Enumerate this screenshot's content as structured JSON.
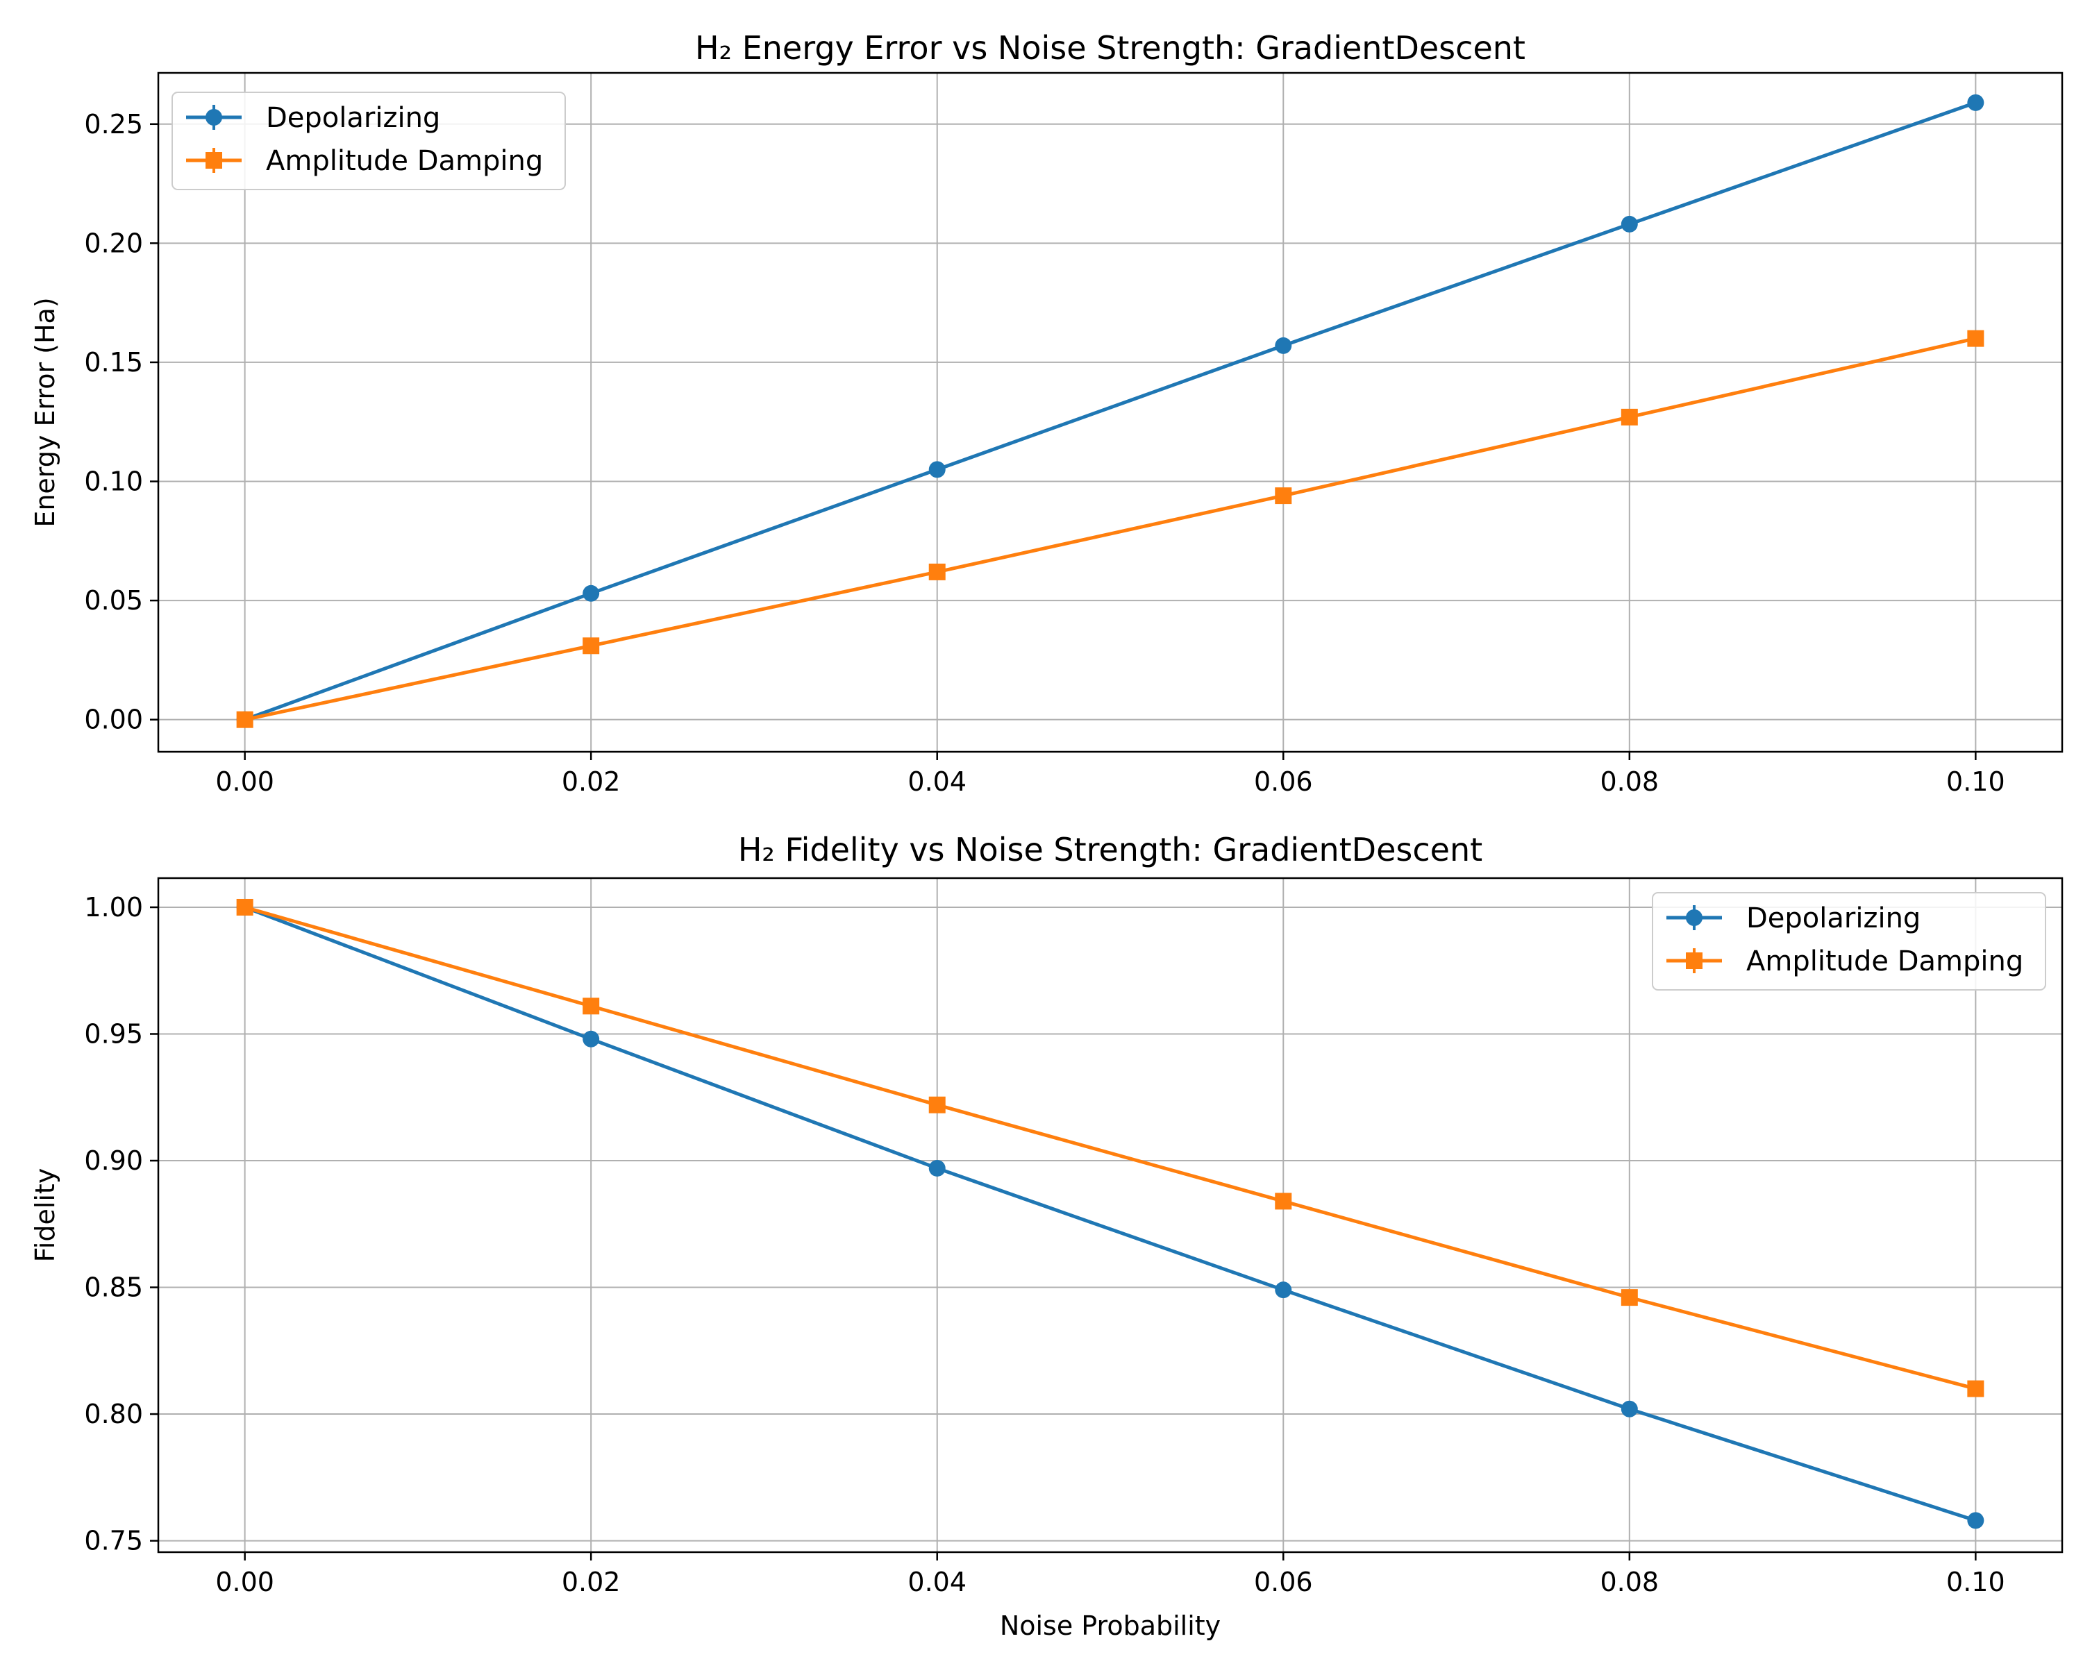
{
  "chart_data": [
    {
      "type": "line",
      "title": "H₂ Energy Error vs Noise Strength: GradientDescent",
      "xlabel": "",
      "ylabel": "Energy Error (Ha)",
      "x": [
        0.0,
        0.02,
        0.04,
        0.06,
        0.08,
        0.1
      ],
      "x_tick_labels": [
        "0.00",
        "0.02",
        "0.04",
        "0.06",
        "0.08",
        "0.10"
      ],
      "y_tick_values": [
        0.0,
        0.05,
        0.1,
        0.15,
        0.2,
        0.25
      ],
      "y_tick_labels": [
        "0.00",
        "0.05",
        "0.10",
        "0.15",
        "0.20",
        "0.25"
      ],
      "xlim": [
        -0.005,
        0.105
      ],
      "ylim": [
        -0.0135,
        0.2715
      ],
      "grid": true,
      "legend_position": "top-left",
      "series": [
        {
          "name": "Depolarizing",
          "color": "#1f77b4",
          "marker": "circle",
          "values": [
            0.0,
            0.053,
            0.105,
            0.157,
            0.208,
            0.259
          ]
        },
        {
          "name": "Amplitude Damping",
          "color": "#ff7f0e",
          "marker": "square",
          "values": [
            0.0,
            0.031,
            0.062,
            0.094,
            0.127,
            0.16
          ]
        }
      ]
    },
    {
      "type": "line",
      "title": "H₂ Fidelity vs Noise Strength: GradientDescent",
      "xlabel": "Noise Probability",
      "ylabel": "Fidelity",
      "x": [
        0.0,
        0.02,
        0.04,
        0.06,
        0.08,
        0.1
      ],
      "x_tick_labels": [
        "0.00",
        "0.02",
        "0.04",
        "0.06",
        "0.08",
        "0.10"
      ],
      "y_tick_values": [
        0.75,
        0.8,
        0.85,
        0.9,
        0.95,
        1.0
      ],
      "y_tick_labels": [
        "0.75",
        "0.80",
        "0.85",
        "0.90",
        "0.95",
        "1.00"
      ],
      "xlim": [
        -0.005,
        0.105
      ],
      "ylim": [
        0.7455,
        1.0115
      ],
      "grid": true,
      "legend_position": "top-right",
      "series": [
        {
          "name": "Depolarizing",
          "color": "#1f77b4",
          "marker": "circle",
          "values": [
            1.0,
            0.948,
            0.897,
            0.849,
            0.802,
            0.758
          ]
        },
        {
          "name": "Amplitude Damping",
          "color": "#ff7f0e",
          "marker": "square",
          "values": [
            1.0,
            0.961,
            0.922,
            0.884,
            0.846,
            0.81
          ]
        }
      ]
    }
  ]
}
